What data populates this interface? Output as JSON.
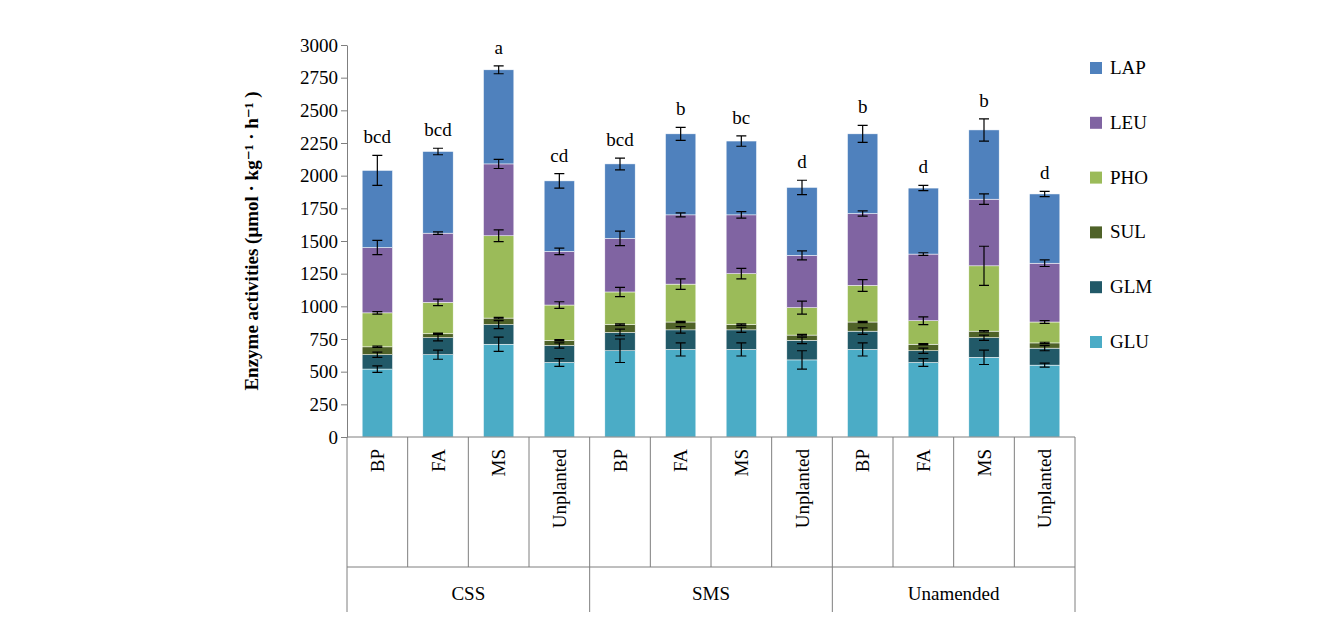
{
  "chart_data": {
    "type": "bar",
    "stacked": true,
    "y_label": "Enzyme activities (μmol · kg⁻¹ · h⁻¹ )",
    "categories": [
      "BP",
      "FA",
      "MS",
      "Unplanted",
      "BP",
      "FA",
      "MS",
      "Unplanted",
      "BP",
      "FA",
      "MS",
      "Unplanted"
    ],
    "group_labels": [
      "CSS",
      "SMS",
      "Unamended"
    ],
    "annotations": [
      "bcd",
      "bcd",
      "a",
      "cd",
      "bcd",
      "b",
      "bc",
      "d",
      "b",
      "d",
      "b",
      "d"
    ],
    "ylim": [
      0,
      3000
    ],
    "yticks": [
      0,
      250,
      500,
      750,
      1000,
      1250,
      1500,
      1750,
      2000,
      2250,
      2500,
      2750,
      3000
    ],
    "grid": false,
    "legend": "right",
    "series": [
      {
        "name": "GLU",
        "color": "#4bacc6",
        "values": [
          520,
          630,
          710,
          570,
          660,
          670,
          670,
          590,
          670,
          570,
          610,
          550
        ],
        "errors": [
          25,
          35,
          55,
          30,
          90,
          50,
          50,
          70,
          50,
          30,
          55,
          15
        ]
      },
      {
        "name": "GLM",
        "color": "#215968",
        "values": [
          110,
          130,
          150,
          130,
          140,
          150,
          150,
          150,
          140,
          90,
          150,
          130
        ],
        "errors": [
          20,
          25,
          30,
          20,
          25,
          25,
          20,
          25,
          25,
          20,
          20,
          20
        ]
      },
      {
        "name": "SUL",
        "color": "#4f6228",
        "values": [
          60,
          30,
          50,
          40,
          60,
          60,
          40,
          40,
          70,
          50,
          50,
          40
        ],
        "errors": [
          5,
          5,
          5,
          5,
          5,
          5,
          5,
          5,
          5,
          5,
          5,
          5
        ]
      },
      {
        "name": "PHO",
        "color": "#9bbb59",
        "values": [
          260,
          240,
          630,
          270,
          250,
          290,
          390,
          210,
          280,
          180,
          500,
          160
        ],
        "errors": [
          10,
          25,
          45,
          25,
          35,
          40,
          40,
          50,
          45,
          30,
          150,
          10
        ]
      },
      {
        "name": "LEU",
        "color": "#8064a2",
        "values": [
          500,
          530,
          550,
          410,
          410,
          530,
          450,
          400,
          550,
          510,
          510,
          450
        ],
        "errors": [
          55,
          10,
          35,
          25,
          55,
          15,
          25,
          35,
          20,
          10,
          40,
          25
        ]
      },
      {
        "name": "LAP",
        "color": "#4f81bd",
        "values": [
          590,
          625,
          720,
          540,
          570,
          620,
          565,
          520,
          610,
          505,
          530,
          530
        ],
        "errors": [
          115,
          25,
          30,
          55,
          45,
          50,
          40,
          55,
          65,
          20,
          85,
          20
        ]
      }
    ]
  }
}
